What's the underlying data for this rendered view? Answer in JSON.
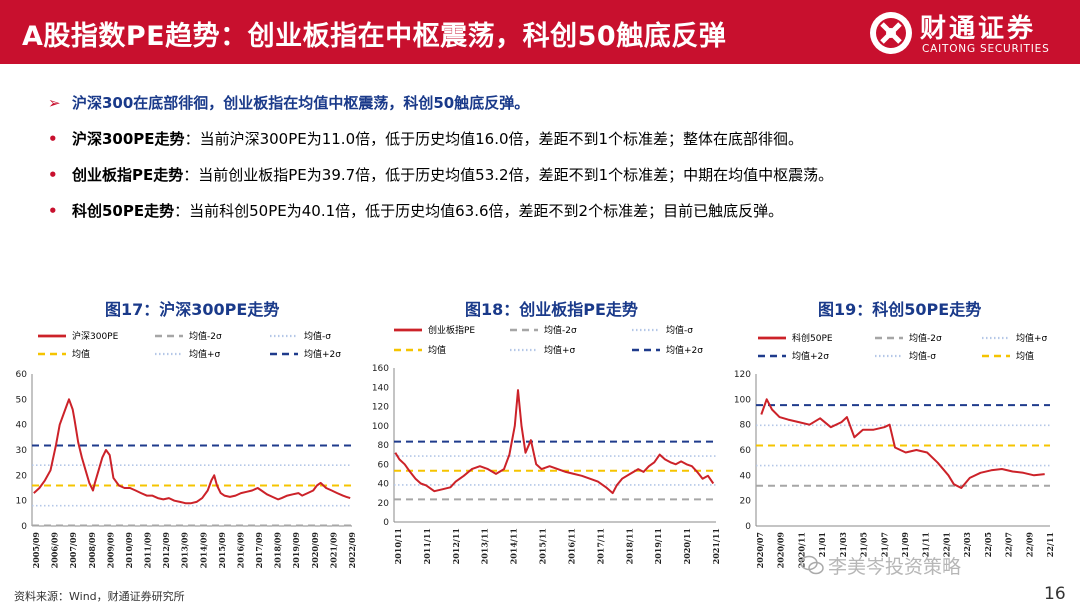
{
  "header": {
    "title": "A股指数PE趋势：创业板指在中枢震荡，科创50触底反弹",
    "logo_cn": "财通证券",
    "logo_en": "CAITONG SECURITIES"
  },
  "bullets": {
    "headline": "沪深300在底部徘徊，创业板指在均值中枢震荡，科创50触底反弹。",
    "items": [
      {
        "key": "沪深300PE走势",
        "text": "：当前沪深300PE为11.0倍，低于历史均值16.0倍，差距不到1个标准差；整体在底部徘徊。"
      },
      {
        "key": "创业板指PE走势",
        "text": "：当前创业板指PE为39.7倍，低于历史均值53.2倍，差距不到1个标准差；中期在均值中枢震荡。"
      },
      {
        "key": "科创50PE走势",
        "text": "：当前科创50PE为40.1倍，低于历史均值63.6倍，差距不到2个标准差；目前已触底反弹。"
      }
    ]
  },
  "colors": {
    "brand_red": "#c8102e",
    "title_blue": "#1a3a8a",
    "series_red": "#cc2229",
    "mean_yellow": "#f5c400",
    "plus2_navy": "#1f3b8c",
    "minus2_gray": "#a6a6a6",
    "sigma_dotted": "#b4c7e7"
  },
  "chart_data": [
    {
      "type": "line",
      "title": "图17：沪深300PE走势",
      "legend": [
        "沪深300PE",
        "均值-2σ",
        "均值-σ",
        "均值",
        "均值+σ",
        "均值+2σ"
      ],
      "ylim": [
        0,
        60
      ],
      "yticks": [
        0,
        10,
        20,
        30,
        40,
        50,
        60
      ],
      "xticks": [
        "2005/09",
        "2006/09",
        "2007/09",
        "2008/09",
        "2009/09",
        "2010/09",
        "2011/09",
        "2012/09",
        "2013/09",
        "2014/09",
        "2015/09",
        "2016/09",
        "2017/09",
        "2018/09",
        "2019/09",
        "2020/09",
        "2021/09",
        "2022/09"
      ],
      "ref_lines": {
        "mean": 16.0,
        "plus1": 24.0,
        "plus2": 31.8,
        "minus1": 8.0,
        "minus2": 0.2
      },
      "series": {
        "name": "沪深300PE",
        "x": [
          2005.7,
          2006.0,
          2006.3,
          2006.6,
          2006.9,
          2007.1,
          2007.3,
          2007.5,
          2007.6,
          2007.8,
          2007.9,
          2008.1,
          2008.3,
          2008.5,
          2008.7,
          2008.9,
          2009.0,
          2009.2,
          2009.4,
          2009.6,
          2009.8,
          2010.0,
          2010.3,
          2010.6,
          2010.9,
          2011.2,
          2011.5,
          2011.8,
          2012.1,
          2012.4,
          2012.7,
          2013.0,
          2013.3,
          2013.6,
          2013.9,
          2014.2,
          2014.5,
          2014.8,
          2015.1,
          2015.3,
          2015.45,
          2015.6,
          2015.8,
          2016.0,
          2016.3,
          2016.6,
          2016.9,
          2017.2,
          2017.5,
          2017.8,
          2018.0,
          2018.3,
          2018.6,
          2018.9,
          2019.1,
          2019.4,
          2019.7,
          2020.0,
          2020.2,
          2020.5,
          2020.8,
          2021.0,
          2021.2,
          2021.5,
          2021.8,
          2022.1,
          2022.4,
          2022.6,
          2022.8
        ],
        "y": [
          13,
          15,
          18,
          22,
          32,
          40,
          44,
          48,
          50,
          46,
          42,
          33,
          27,
          22,
          17,
          14,
          17,
          22,
          27,
          30,
          28,
          19,
          16,
          15,
          15,
          14,
          13,
          12,
          12,
          11,
          10.5,
          11,
          10,
          9.5,
          9,
          9,
          9.5,
          11,
          14,
          18,
          20,
          16,
          13,
          12,
          11.5,
          12,
          13,
          13.5,
          14,
          15,
          14,
          12.5,
          11.5,
          10.5,
          11,
          12,
          12.5,
          13,
          12,
          13,
          14,
          16,
          17,
          15,
          14,
          13,
          12,
          11.5,
          11
        ]
      }
    },
    {
      "type": "line",
      "title": "图18：创业板指PE走势",
      "legend": [
        "创业板指PE",
        "均值-2σ",
        "均值-σ",
        "均值",
        "均值+σ",
        "均值+2σ"
      ],
      "ylim": [
        0,
        160
      ],
      "yticks": [
        0,
        20,
        40,
        60,
        80,
        100,
        120,
        140,
        160
      ],
      "xticks": [
        "2010/11",
        "2011/11",
        "2012/11",
        "2013/11",
        "2014/11",
        "2015/11",
        "2016/11",
        "2017/11",
        "2018/11",
        "2019/11",
        "2020/11",
        "2021/11"
      ],
      "ref_lines": {
        "mean": 53.2,
        "plus1": 68.5,
        "plus2": 83.5,
        "minus1": 38.5,
        "minus2": 23.5
      },
      "series": {
        "name": "创业板指PE",
        "x": [
          2010.85,
          2011.0,
          2011.2,
          2011.4,
          2011.6,
          2011.8,
          2012.0,
          2012.3,
          2012.6,
          2012.9,
          2013.1,
          2013.4,
          2013.7,
          2014.0,
          2014.3,
          2014.6,
          2014.9,
          2015.1,
          2015.3,
          2015.42,
          2015.55,
          2015.7,
          2015.9,
          2016.1,
          2016.3,
          2016.6,
          2016.9,
          2017.2,
          2017.5,
          2017.8,
          2018.1,
          2018.4,
          2018.7,
          2018.95,
          2019.1,
          2019.3,
          2019.6,
          2019.9,
          2020.1,
          2020.3,
          2020.5,
          2020.7,
          2020.9,
          2021.1,
          2021.3,
          2021.5,
          2021.7,
          2021.9,
          2022.1,
          2022.3,
          2022.5,
          2022.7
        ],
        "y": [
          72,
          65,
          60,
          52,
          45,
          40,
          38,
          32,
          34,
          36,
          42,
          48,
          55,
          58,
          55,
          50,
          55,
          70,
          100,
          137,
          100,
          72,
          85,
          60,
          55,
          58,
          55,
          52,
          50,
          48,
          45,
          42,
          36,
          30,
          38,
          45,
          50,
          55,
          52,
          58,
          62,
          70,
          65,
          62,
          60,
          63,
          60,
          58,
          52,
          45,
          48,
          40
        ]
      }
    },
    {
      "type": "line",
      "title": "图19：科创50PE走势",
      "legend": [
        "科创50PE",
        "均值-2σ",
        "均值+σ",
        "均值+2σ",
        "均值-σ",
        "均值"
      ],
      "ylim": [
        0,
        120
      ],
      "yticks": [
        0,
        20,
        40,
        60,
        80,
        100,
        120
      ],
      "xticks": [
        "2020/07",
        "2020/09",
        "2020/11",
        "21/01",
        "21/03",
        "21/05",
        "21/07",
        "21/09",
        "21/11",
        "22/01",
        "22/03",
        "22/05",
        "22/07",
        "22/09",
        "22/11"
      ],
      "ref_lines": {
        "mean": 63.6,
        "plus1": 79.5,
        "plus2": 95.4,
        "minus1": 47.7,
        "minus2": 31.8
      },
      "series": {
        "name": "科创50PE",
        "x": [
          2020.55,
          2020.6,
          2020.65,
          2020.72,
          2020.8,
          2020.9,
          2021.0,
          2021.1,
          2021.2,
          2021.3,
          2021.35,
          2021.42,
          2021.5,
          2021.6,
          2021.7,
          2021.75,
          2021.8,
          2021.9,
          2022.0,
          2022.1,
          2022.2,
          2022.3,
          2022.35,
          2022.42,
          2022.5,
          2022.6,
          2022.7,
          2022.8,
          2022.9,
          2023.0,
          2023.1,
          2023.2
        ],
        "y": [
          88,
          100,
          92,
          86,
          84,
          82,
          80,
          85,
          78,
          82,
          86,
          70,
          76,
          76,
          78,
          80,
          62,
          58,
          60,
          58,
          50,
          40,
          33,
          30,
          38,
          42,
          44,
          45,
          43,
          42,
          40,
          41
        ]
      }
    }
  ],
  "footer": {
    "source": "资料来源：Wind，财通证券研究所",
    "watermark": "李美岑投资策略",
    "page_number": "16"
  }
}
